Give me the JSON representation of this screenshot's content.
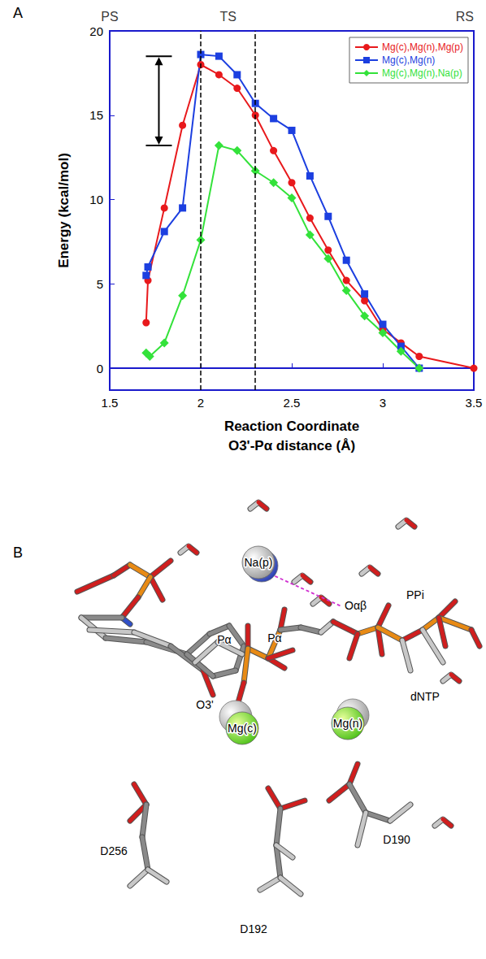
{
  "chart_data": {
    "type": "line",
    "label": "A",
    "xlabel": "Reaction Coordinate\nO3'-Pα distance (Å)",
    "ylabel": "Energy (kcal/mol)",
    "xlim": [
      1.5,
      3.5
    ],
    "xticks": [
      1.5,
      2,
      2.5,
      3,
      3.5
    ],
    "ylim": [
      -1.3,
      20
    ],
    "yticks": [
      0,
      5,
      10,
      15,
      20
    ],
    "grid": false,
    "legend": "upper right",
    "annotations": [
      {
        "text": "PS",
        "x": 1.5
      },
      {
        "text": "TS",
        "x": 2.15
      },
      {
        "text": "RS",
        "x": 3.45
      }
    ],
    "vlines": [
      2.0,
      2.3
    ],
    "arrow": {
      "x": 1.77,
      "y": [
        13.2,
        18.5
      ]
    },
    "series": [
      {
        "name": "Mg(c),Mg(n),Mg(p)",
        "color": "#e8191c",
        "marker": "circle",
        "x": [
          1.7,
          1.71,
          1.8,
          1.9,
          2.0,
          2.1,
          2.2,
          2.3,
          2.4,
          2.5,
          2.6,
          2.7,
          2.8,
          2.9,
          3.0,
          3.1,
          3.2,
          3.5
        ],
        "values": [
          2.7,
          5.2,
          9.5,
          14.4,
          18.0,
          17.4,
          16.6,
          15.0,
          12.9,
          11.0,
          8.9,
          7.0,
          5.2,
          4.0,
          2.3,
          1.5,
          0.7,
          0.0
        ]
      },
      {
        "name": "Mg(c),Mg(n)",
        "color": "#1c3fe0",
        "marker": "square",
        "x": [
          1.7,
          1.71,
          1.8,
          1.9,
          2.0,
          2.1,
          2.2,
          2.3,
          2.4,
          2.5,
          2.6,
          2.7,
          2.8,
          2.9,
          3.0,
          3.1,
          3.2
        ],
        "values": [
          5.5,
          6.0,
          8.1,
          9.5,
          18.6,
          18.5,
          17.4,
          15.7,
          14.8,
          14.1,
          11.4,
          9.0,
          6.4,
          4.4,
          2.6,
          1.3,
          0.0
        ]
      },
      {
        "name": "Mg(c),Mg(n),Na(p)",
        "color": "#33e23a",
        "marker": "diamond",
        "x": [
          1.7,
          1.72,
          1.8,
          1.9,
          2.0,
          2.1,
          2.2,
          2.3,
          2.4,
          2.5,
          2.6,
          2.7,
          2.8,
          2.9,
          3.0,
          3.1,
          3.2
        ],
        "values": [
          0.9,
          0.7,
          1.5,
          4.3,
          7.6,
          13.2,
          12.9,
          11.7,
          11.0,
          10.1,
          7.9,
          6.5,
          4.6,
          3.1,
          2.1,
          1.0,
          0.0
        ]
      }
    ]
  },
  "panel_b": {
    "label": "B",
    "ions": [
      "Na(p)",
      "Mg(c)",
      "Mg(n)"
    ],
    "atoms": [
      "Oαβ",
      "PPi",
      "Pα",
      "Pα",
      "O3'",
      "dNTP"
    ],
    "residues": [
      "D256",
      "D190",
      "D192"
    ]
  }
}
